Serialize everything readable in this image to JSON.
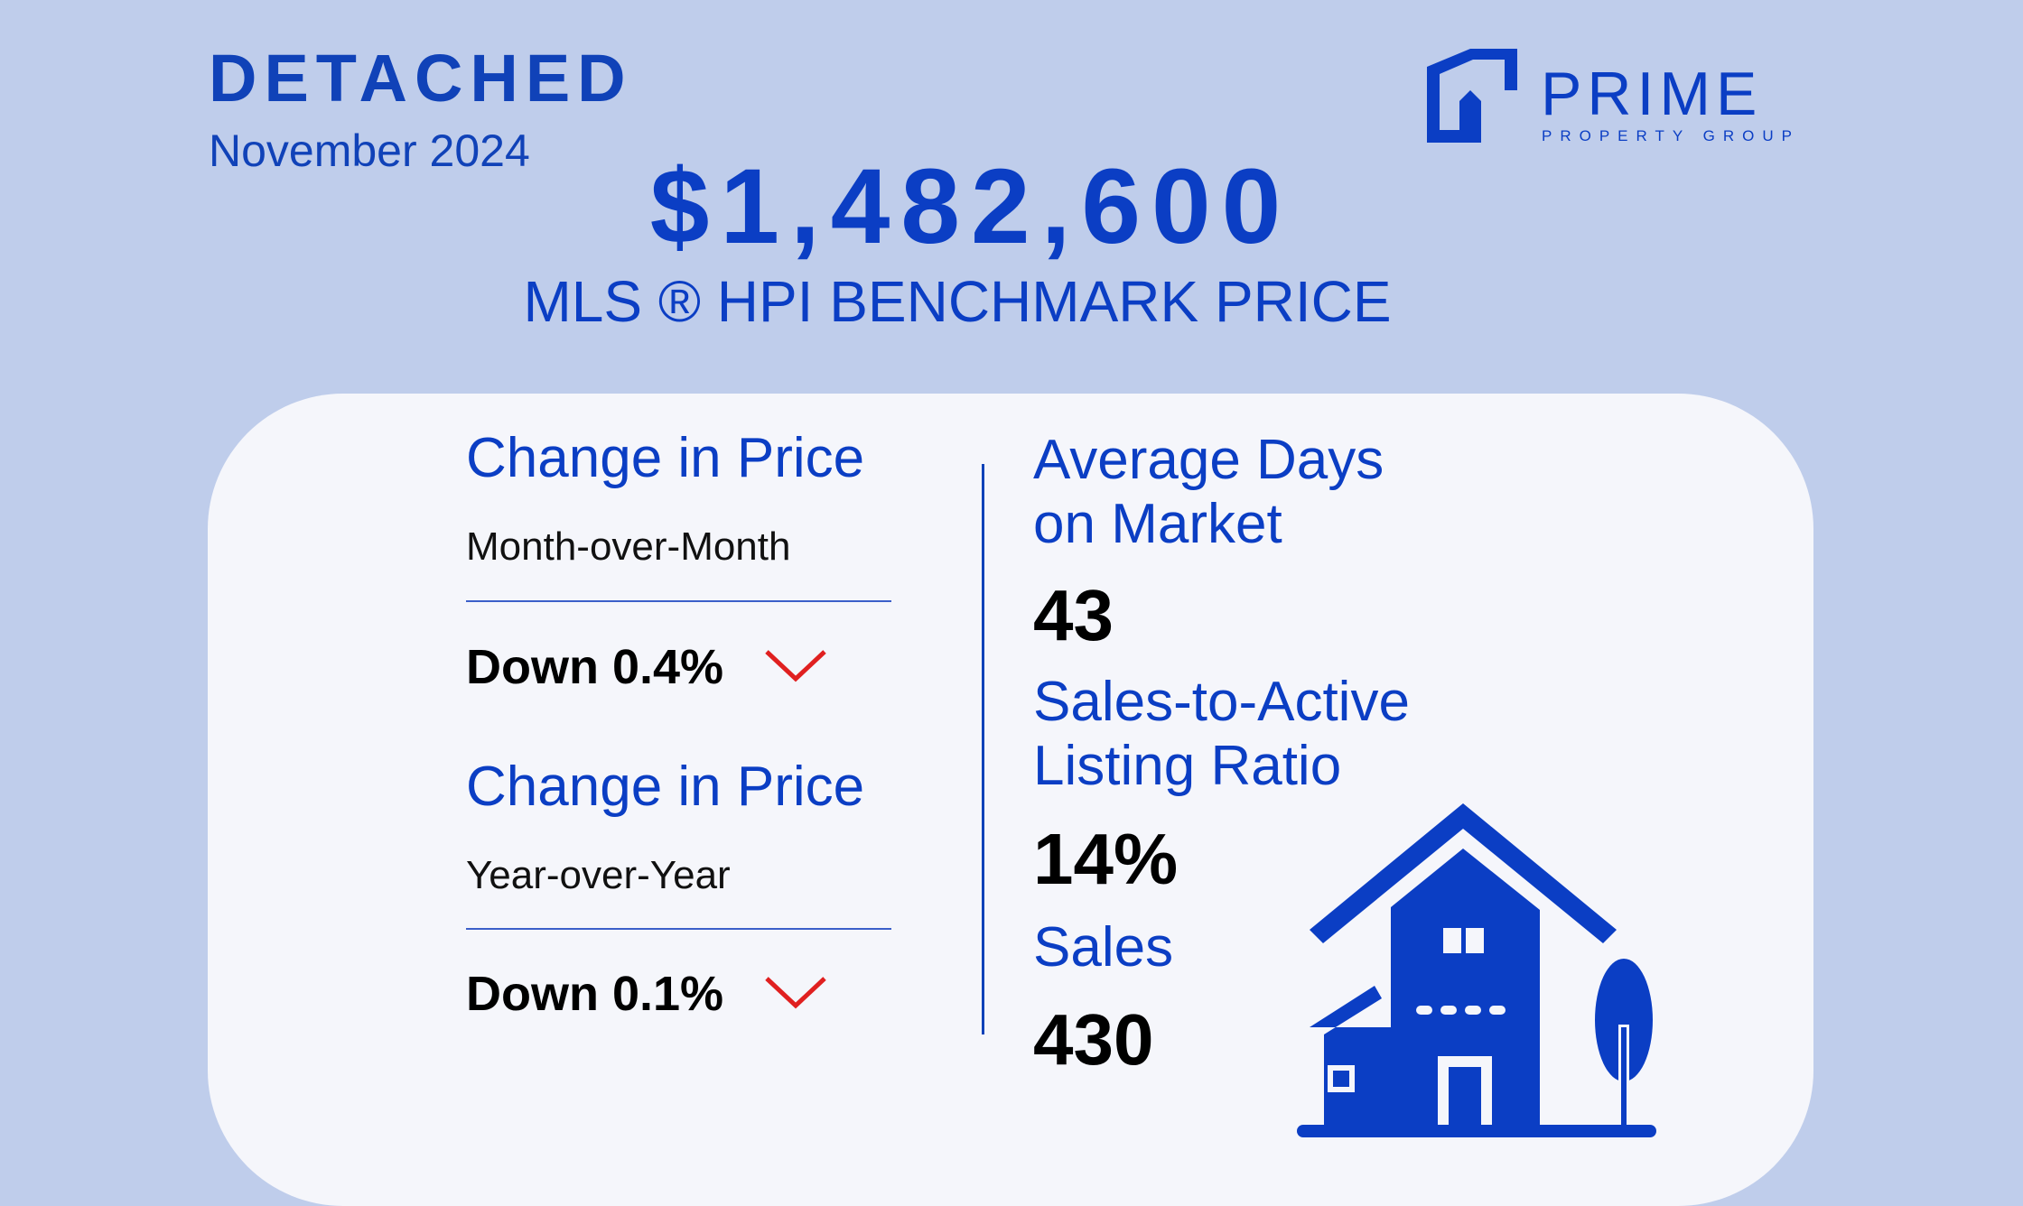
{
  "header": {
    "category": "DETACHED",
    "period": "November 2024"
  },
  "benchmark": {
    "price": "$1,482,600",
    "label": "MLS ®  HPI BENCHMARK PRICE"
  },
  "logo": {
    "word": "PRIME",
    "sub": "PROPERTY GROUP",
    "icon": "house-roof-logo-icon"
  },
  "left": {
    "mom": {
      "heading": "Change in Price",
      "period": "Month-over-Month",
      "value": "Down 0.4%",
      "icon": "chevron-down-icon"
    },
    "yoy": {
      "heading": "Change in Price",
      "period": "Year-over-Year",
      "value": "Down 0.1%",
      "icon": "chevron-down-icon"
    }
  },
  "right": {
    "dom": {
      "heading_line1": "Average Days",
      "heading_line2": "on Market",
      "value": "43"
    },
    "ratio": {
      "heading_line1": "Sales-to-Active",
      "heading_line2": "Listing Ratio",
      "value": "14%"
    },
    "sales": {
      "heading": "Sales",
      "value": "430"
    }
  },
  "illustration": {
    "icon": "house-with-tree-icon"
  },
  "colors": {
    "background": "#bfcdeb",
    "brand_blue": "#0b3ec4",
    "card": "#f5f6fb",
    "down_red": "#e02020"
  }
}
